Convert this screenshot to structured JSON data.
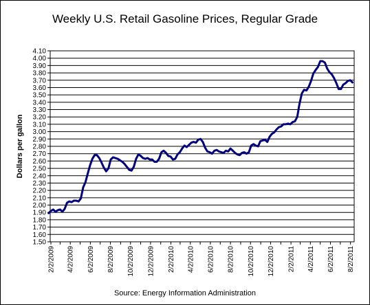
{
  "chart_data": {
    "type": "line",
    "title": "Weekly U.S. Retail Gasoline Prices, Regular Grade",
    "ylabel": "Dollars per gallon",
    "source": "Source:  Energy Information Administration",
    "ylim": [
      1.5,
      4.1
    ],
    "y_ticks": [
      "1.50",
      "1.60",
      "1.70",
      "1.80",
      "1.90",
      "2.00",
      "2.10",
      "2.20",
      "2.30",
      "2.40",
      "2.50",
      "2.60",
      "2.70",
      "2.80",
      "2.90",
      "3.00",
      "3.10",
      "3.20",
      "3.30",
      "3.40",
      "3.50",
      "3.60",
      "3.70",
      "3.80",
      "3.90",
      "4.00",
      "4.10"
    ],
    "x_ticks": [
      "2/2/2009",
      "4/2/2009",
      "6/2/2009",
      "8/2/2009",
      "10/2/2009",
      "12/2/2009",
      "2/2/2010",
      "4/2/2010",
      "6/2/2010",
      "8/2/2010",
      "10/2/2010",
      "12/2/2010",
      "2/2/2011",
      "4/2/2011",
      "6/2/2011",
      "8/2/2011"
    ],
    "grid": true,
    "line_color": "#000080",
    "series": [
      {
        "name": "",
        "x": [
          "2009-01-26",
          "2009-02-02",
          "2009-02-09",
          "2009-02-16",
          "2009-02-23",
          "2009-03-02",
          "2009-03-09",
          "2009-03-16",
          "2009-03-23",
          "2009-03-30",
          "2009-04-06",
          "2009-04-13",
          "2009-04-20",
          "2009-04-27",
          "2009-05-04",
          "2009-05-11",
          "2009-05-18",
          "2009-05-25",
          "2009-06-01",
          "2009-06-08",
          "2009-06-15",
          "2009-06-22",
          "2009-06-29",
          "2009-07-06",
          "2009-07-13",
          "2009-07-20",
          "2009-07-27",
          "2009-08-03",
          "2009-08-10",
          "2009-08-17",
          "2009-08-24",
          "2009-08-31",
          "2009-09-07",
          "2009-09-14",
          "2009-09-21",
          "2009-09-28",
          "2009-10-05",
          "2009-10-12",
          "2009-10-19",
          "2009-10-26",
          "2009-11-02",
          "2009-11-09",
          "2009-11-16",
          "2009-11-23",
          "2009-11-30",
          "2009-12-07",
          "2009-12-14",
          "2009-12-21",
          "2009-12-28",
          "2010-01-04",
          "2010-01-11",
          "2010-01-18",
          "2010-01-25",
          "2010-02-01",
          "2010-02-08",
          "2010-02-15",
          "2010-02-22",
          "2010-03-01",
          "2010-03-08",
          "2010-03-15",
          "2010-03-22",
          "2010-03-29",
          "2010-04-05",
          "2010-04-12",
          "2010-04-19",
          "2010-04-26",
          "2010-05-03",
          "2010-05-10",
          "2010-05-17",
          "2010-05-24",
          "2010-05-31",
          "2010-06-07",
          "2010-06-14",
          "2010-06-21",
          "2010-06-28",
          "2010-07-05",
          "2010-07-12",
          "2010-07-19",
          "2010-07-26",
          "2010-08-02",
          "2010-08-09",
          "2010-08-16",
          "2010-08-23",
          "2010-08-30",
          "2010-09-06",
          "2010-09-13",
          "2010-09-20",
          "2010-09-27",
          "2010-10-04",
          "2010-10-11",
          "2010-10-18",
          "2010-10-25",
          "2010-11-01",
          "2010-11-08",
          "2010-11-15",
          "2010-11-22",
          "2010-11-29",
          "2010-12-06",
          "2010-12-13",
          "2010-12-20",
          "2010-12-27",
          "2011-01-03",
          "2011-01-10",
          "2011-01-17",
          "2011-01-24",
          "2011-01-31",
          "2011-02-07",
          "2011-02-14",
          "2011-02-21",
          "2011-02-28",
          "2011-03-07",
          "2011-03-14",
          "2011-03-21",
          "2011-03-28",
          "2011-04-04",
          "2011-04-11",
          "2011-04-18",
          "2011-04-25",
          "2011-05-02",
          "2011-05-09",
          "2011-05-16",
          "2011-05-23",
          "2011-05-30",
          "2011-06-06",
          "2011-06-13",
          "2011-06-20",
          "2011-06-27",
          "2011-07-04",
          "2011-07-11",
          "2011-07-18",
          "2011-07-25",
          "2011-08-01",
          "2011-08-08"
        ],
        "values": [
          1.89,
          1.92,
          1.94,
          1.91,
          1.93,
          1.94,
          1.91,
          1.95,
          2.03,
          2.05,
          2.04,
          2.06,
          2.06,
          2.05,
          2.09,
          2.24,
          2.31,
          2.43,
          2.54,
          2.63,
          2.68,
          2.68,
          2.64,
          2.58,
          2.51,
          2.46,
          2.5,
          2.62,
          2.65,
          2.64,
          2.63,
          2.61,
          2.59,
          2.56,
          2.52,
          2.48,
          2.47,
          2.52,
          2.63,
          2.69,
          2.67,
          2.64,
          2.63,
          2.64,
          2.62,
          2.62,
          2.59,
          2.59,
          2.63,
          2.72,
          2.74,
          2.71,
          2.67,
          2.66,
          2.62,
          2.63,
          2.69,
          2.72,
          2.77,
          2.81,
          2.79,
          2.82,
          2.85,
          2.86,
          2.85,
          2.89,
          2.9,
          2.86,
          2.78,
          2.73,
          2.72,
          2.7,
          2.74,
          2.75,
          2.73,
          2.72,
          2.71,
          2.74,
          2.73,
          2.77,
          2.74,
          2.71,
          2.69,
          2.68,
          2.71,
          2.72,
          2.7,
          2.72,
          2.81,
          2.83,
          2.81,
          2.8,
          2.87,
          2.88,
          2.89,
          2.86,
          2.93,
          2.97,
          2.99,
          3.03,
          3.06,
          3.07,
          3.1,
          3.1,
          3.11,
          3.1,
          3.13,
          3.14,
          3.2,
          3.38,
          3.52,
          3.57,
          3.56,
          3.61,
          3.69,
          3.79,
          3.84,
          3.88,
          3.96,
          3.96,
          3.94,
          3.86,
          3.81,
          3.78,
          3.73,
          3.66,
          3.58,
          3.58,
          3.64,
          3.66,
          3.69,
          3.7,
          3.67
        ]
      }
    ]
  }
}
